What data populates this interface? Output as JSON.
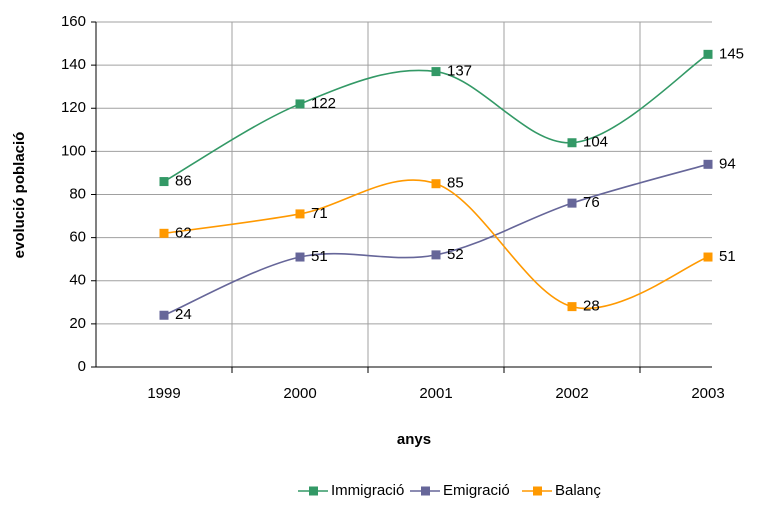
{
  "chart_data": {
    "type": "line",
    "x_label": "anys",
    "y_label": "evolució població",
    "categories": [
      "1999",
      "2000",
      "2001",
      "2002",
      "2003"
    ],
    "series": [
      {
        "name": "Immigració",
        "color": "#339966",
        "values": [
          86,
          122,
          137,
          104,
          145
        ]
      },
      {
        "name": "Emigració",
        "color": "#666699",
        "values": [
          24,
          51,
          52,
          76,
          94
        ]
      },
      {
        "name": "Balanç",
        "color": "#ff9900",
        "values": [
          62,
          71,
          85,
          28,
          51
        ]
      }
    ],
    "ylim": [
      0,
      160
    ],
    "yticks": [
      0,
      20,
      40,
      60,
      80,
      100,
      120,
      140,
      160
    ],
    "grid": true,
    "legend": "bottom",
    "smooth": true
  }
}
